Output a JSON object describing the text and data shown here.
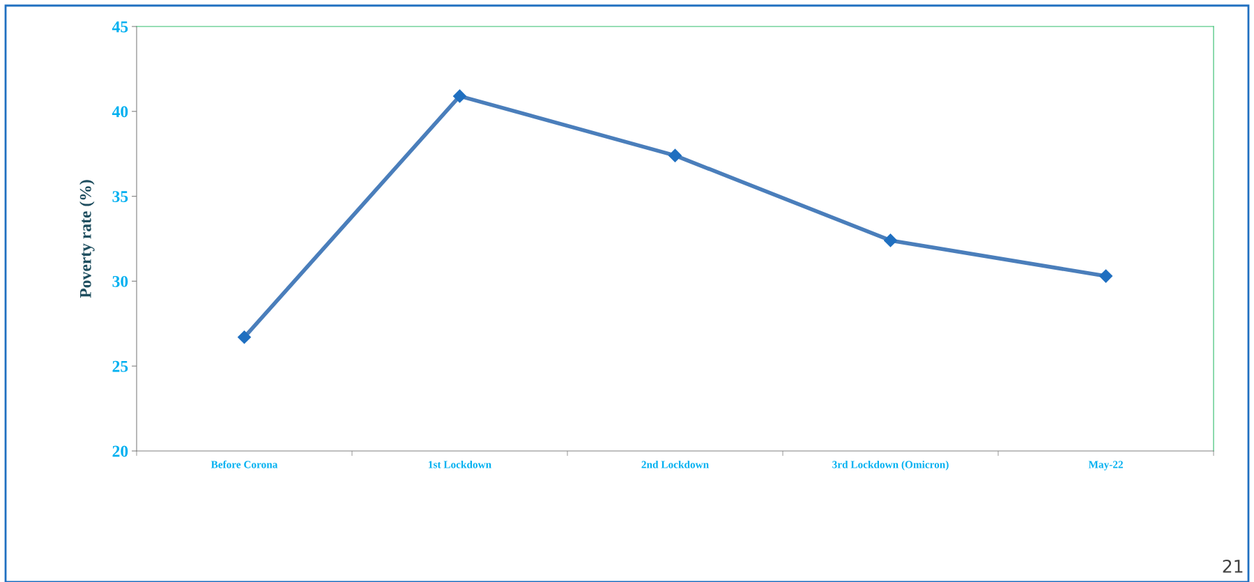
{
  "chart_data": {
    "type": "line",
    "ylabel": "Poverty rate (%)",
    "categories": [
      "Before Corona",
      "1st Lockdown",
      "2nd Lockdown",
      "3rd Lockdown (Omicron)",
      "May-22"
    ],
    "series": [
      {
        "color": "#4a7ebb",
        "values": [
          26.7,
          40.9,
          37.4,
          32.4,
          30.3
        ]
      }
    ],
    "ylim": [
      20,
      45
    ],
    "yticks": [
      20,
      25,
      30,
      35,
      40,
      45
    ],
    "grid": false,
    "legend": false,
    "marker": "diamond",
    "line_style": "solid",
    "annotations": [
      "21"
    ]
  }
}
